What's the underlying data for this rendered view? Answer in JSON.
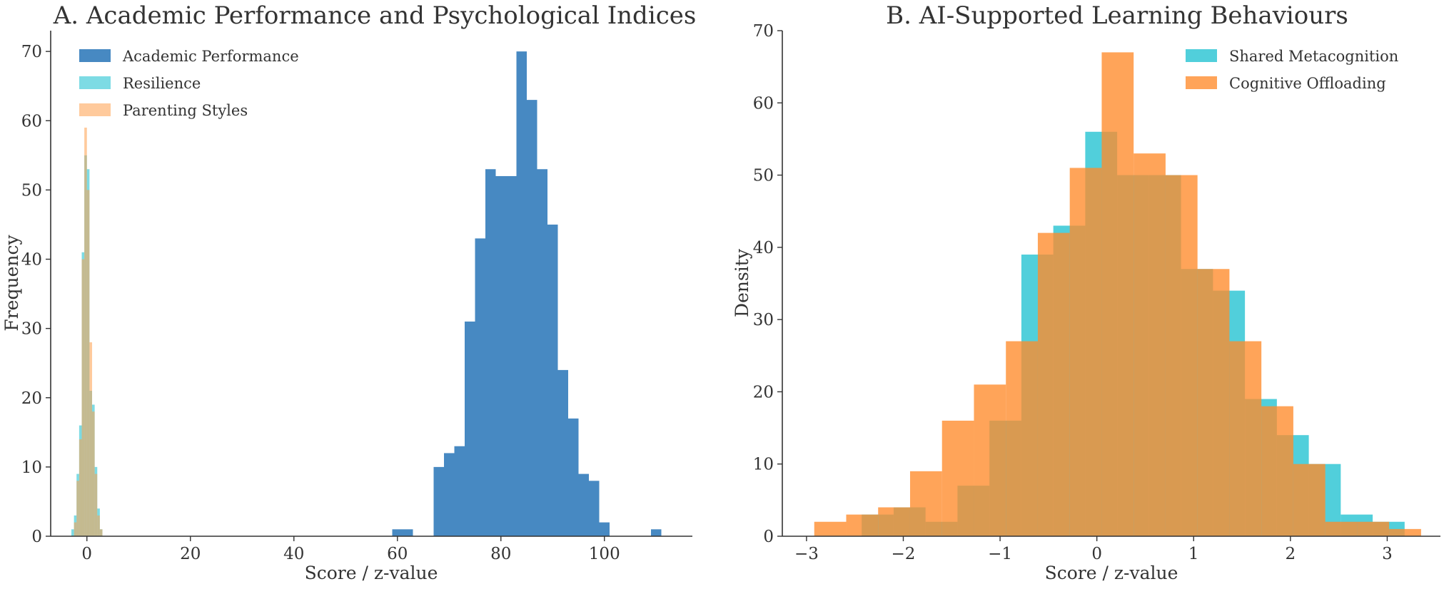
{
  "chart_data": [
    {
      "type": "histogram",
      "title": "A. Academic Performance and Psychological Indices",
      "xlabel": "Score / z-value",
      "ylabel": "Frequency",
      "xlim": [
        -7,
        117
      ],
      "ylim": [
        0,
        73
      ],
      "xticks": [
        0,
        20,
        40,
        60,
        80,
        100
      ],
      "yticks": [
        0,
        10,
        20,
        30,
        40,
        50,
        60,
        70
      ],
      "legend_position": "top-left",
      "series": [
        {
          "name": "Academic Performance",
          "color": "#1f6fb4",
          "opacity": 0.82,
          "bins": [
            [
              59,
              61,
              1
            ],
            [
              61,
              63,
              1
            ],
            [
              63,
              65,
              0
            ],
            [
              65,
              67,
              0
            ],
            [
              67,
              69,
              10
            ],
            [
              69,
              71,
              12
            ],
            [
              71,
              73,
              13
            ],
            [
              73,
              75,
              31
            ],
            [
              75,
              77,
              43
            ],
            [
              77,
              79,
              53
            ],
            [
              79,
              81,
              52
            ],
            [
              81,
              83,
              52
            ],
            [
              83,
              85,
              70
            ],
            [
              85,
              87,
              63
            ],
            [
              87,
              89,
              53
            ],
            [
              89,
              91,
              45
            ],
            [
              91,
              93,
              24
            ],
            [
              93,
              95,
              17
            ],
            [
              95,
              97,
              9
            ],
            [
              97,
              99,
              8
            ],
            [
              99,
              101,
              2
            ],
            [
              101,
              103,
              0
            ],
            [
              103,
              105,
              0
            ],
            [
              105,
              107,
              0
            ],
            [
              107,
              109,
              0
            ],
            [
              109,
              111,
              1
            ]
          ]
        },
        {
          "name": "Resilience",
          "color": "#26c3d2",
          "opacity": 0.6,
          "bins": [
            [
              -3.0,
              -2.5,
              1
            ],
            [
              -2.5,
              -2.0,
              3
            ],
            [
              -2.0,
              -1.5,
              9
            ],
            [
              -1.5,
              -1.0,
              16
            ],
            [
              -1.0,
              -0.5,
              41
            ],
            [
              -0.5,
              0.0,
              55
            ],
            [
              0.0,
              0.5,
              53
            ],
            [
              0.5,
              1.0,
              21
            ],
            [
              1.0,
              1.5,
              19
            ],
            [
              1.5,
              2.0,
              10
            ],
            [
              2.0,
              2.5,
              4
            ],
            [
              2.5,
              3.0,
              1
            ]
          ]
        },
        {
          "name": "Parenting Styles",
          "color": "#ff9f4a",
          "opacity": 0.55,
          "bins": [
            [
              -2.5,
              -2.0,
              2
            ],
            [
              -2.0,
              -1.5,
              8
            ],
            [
              -1.5,
              -1.0,
              14
            ],
            [
              -1.0,
              -0.5,
              40
            ],
            [
              -0.5,
              0.0,
              59
            ],
            [
              0.0,
              0.5,
              50
            ],
            [
              0.5,
              1.0,
              28
            ],
            [
              1.0,
              1.5,
              18
            ],
            [
              1.5,
              2.0,
              9
            ],
            [
              2.0,
              2.5,
              3
            ],
            [
              2.5,
              3.0,
              1
            ]
          ]
        }
      ]
    },
    {
      "type": "histogram",
      "title": "B. AI-Supported Learning Behaviours",
      "xlabel": "Score / z-value",
      "ylabel": "Density",
      "xlim": [
        -3.25,
        3.55
      ],
      "ylim": [
        0,
        70
      ],
      "xticks": [
        -3,
        -2,
        -1,
        0,
        1,
        2,
        3
      ],
      "yticks": [
        0,
        10,
        20,
        30,
        40,
        50,
        60,
        70
      ],
      "legend_position": "top-right",
      "series": [
        {
          "name": "Shared Metacognition",
          "color": "#26c3d2",
          "opacity": 0.8,
          "bins": [
            [
              -2.43,
              -2.1,
              3
            ],
            [
              -2.1,
              -1.77,
              4
            ],
            [
              -1.77,
              -1.44,
              2
            ],
            [
              -1.44,
              -1.11,
              7
            ],
            [
              -1.11,
              -0.78,
              16
            ],
            [
              -0.78,
              -0.45,
              39
            ],
            [
              -0.45,
              -0.12,
              43
            ],
            [
              -0.12,
              0.21,
              56
            ],
            [
              0.21,
              0.54,
              50
            ],
            [
              0.54,
              0.87,
              50
            ],
            [
              0.87,
              1.2,
              37
            ],
            [
              1.2,
              1.53,
              34
            ],
            [
              1.53,
              1.86,
              19
            ],
            [
              1.86,
              2.19,
              14
            ],
            [
              2.19,
              2.52,
              10
            ],
            [
              2.52,
              2.85,
              3
            ],
            [
              2.85,
              3.18,
              2
            ]
          ]
        },
        {
          "name": "Cognitive Offloading",
          "color": "#ff8a2a",
          "opacity": 0.78,
          "bins": [
            [
              -2.92,
              -2.59,
              2
            ],
            [
              -2.59,
              -2.26,
              3
            ],
            [
              -2.26,
              -1.93,
              4
            ],
            [
              -1.93,
              -1.6,
              9
            ],
            [
              -1.6,
              -1.27,
              16
            ],
            [
              -1.27,
              -0.94,
              21
            ],
            [
              -0.94,
              -0.61,
              27
            ],
            [
              -0.61,
              -0.28,
              42
            ],
            [
              -0.28,
              0.05,
              51
            ],
            [
              0.05,
              0.38,
              67
            ],
            [
              0.38,
              0.71,
              53
            ],
            [
              0.71,
              1.04,
              50
            ],
            [
              1.04,
              1.37,
              37
            ],
            [
              1.37,
              1.7,
              27
            ],
            [
              1.7,
              2.03,
              18
            ],
            [
              2.03,
              2.36,
              10
            ],
            [
              2.36,
              2.69,
              2
            ],
            [
              2.69,
              3.02,
              2
            ],
            [
              3.02,
              3.35,
              1
            ]
          ]
        }
      ]
    }
  ]
}
